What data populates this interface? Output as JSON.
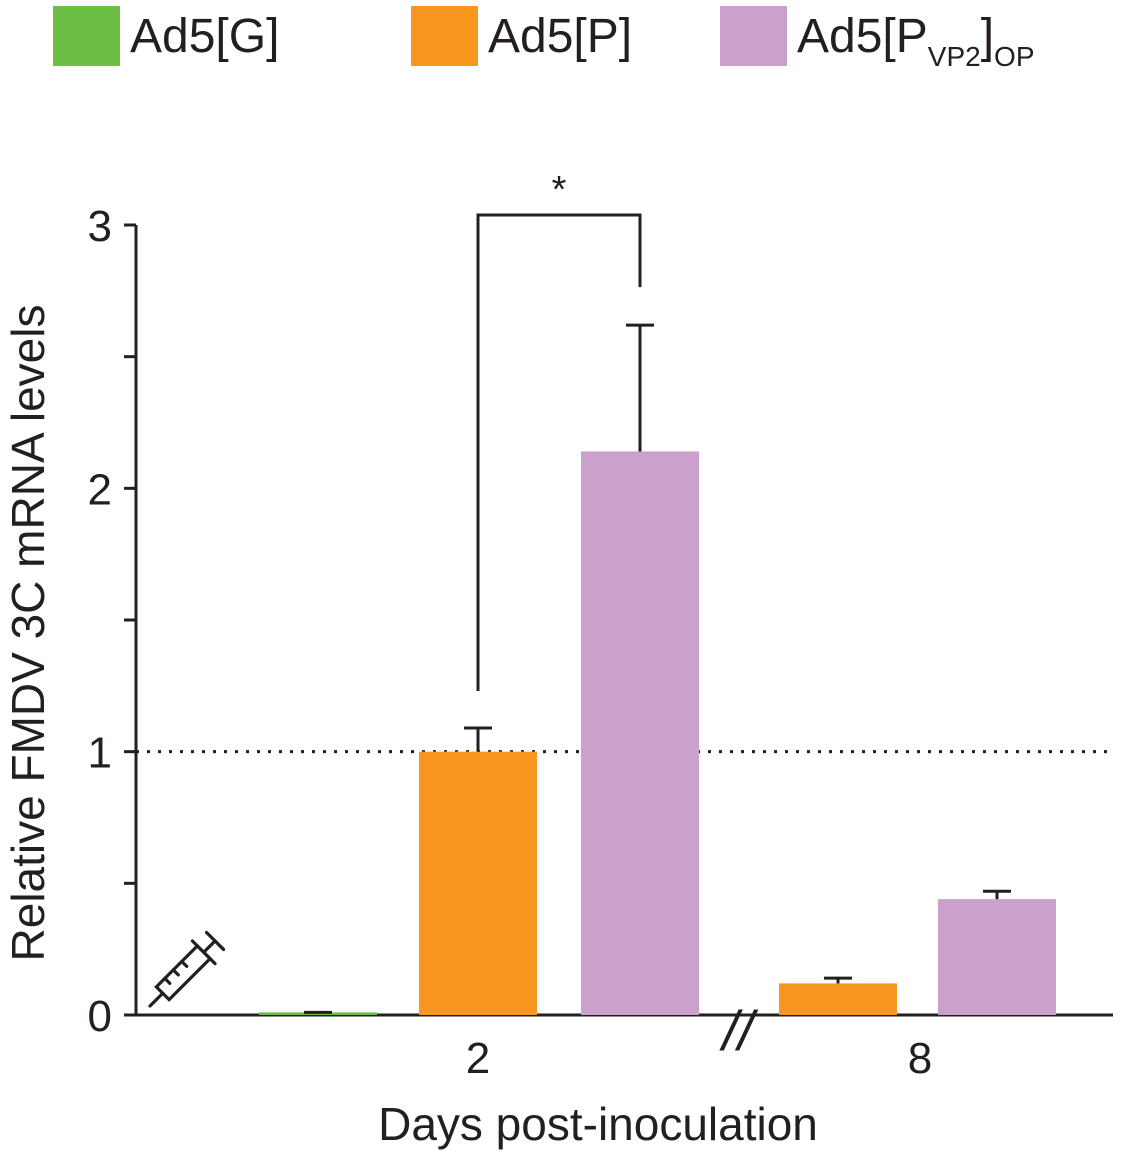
{
  "chart_data": {
    "type": "bar",
    "title": "",
    "xlabel": "Days post-inoculation",
    "ylabel": "Relative FMDV 3C mRNA levels",
    "ylim": [
      0,
      3
    ],
    "yticks": [
      {
        "value": 0,
        "label": "0"
      },
      {
        "value": 0.5,
        "label": ""
      },
      {
        "value": 1,
        "label": "1"
      },
      {
        "value": 1.5,
        "label": ""
      },
      {
        "value": 2,
        "label": "2"
      },
      {
        "value": 2.5,
        "label": ""
      },
      {
        "value": 3,
        "label": "3"
      }
    ],
    "categories": [
      "2",
      "8"
    ],
    "reference_line": {
      "value": 1,
      "style": "dotted"
    },
    "legend_position": "top",
    "series": [
      {
        "name": "Ad5[G]",
        "name_parts": [
          "Ad5[G]"
        ],
        "color": "#6cbf45",
        "values": [
          0.01,
          null
        ],
        "errors": [
          0.0,
          null
        ]
      },
      {
        "name": "Ad5[P]",
        "name_parts": [
          "Ad5[P]"
        ],
        "color": "#f7971f",
        "values": [
          1.0,
          0.12
        ],
        "errors": [
          0.09,
          0.02
        ]
      },
      {
        "name": "Ad5[P VP2]OP",
        "name_parts": [
          "Ad5[P",
          "VP2",
          "]",
          "OP"
        ],
        "color": "#cba0cb",
        "values": [
          2.14,
          0.44
        ],
        "errors": [
          0.48,
          0.03
        ]
      }
    ],
    "annotations": [
      {
        "type": "significance",
        "text": "*",
        "between": [
          "Ad5[P] day 2",
          "Ad5[P VP2]OP day 2"
        ]
      },
      {
        "type": "axis-break",
        "text": "//"
      },
      {
        "type": "icon",
        "text": "syringe-icon"
      }
    ]
  }
}
